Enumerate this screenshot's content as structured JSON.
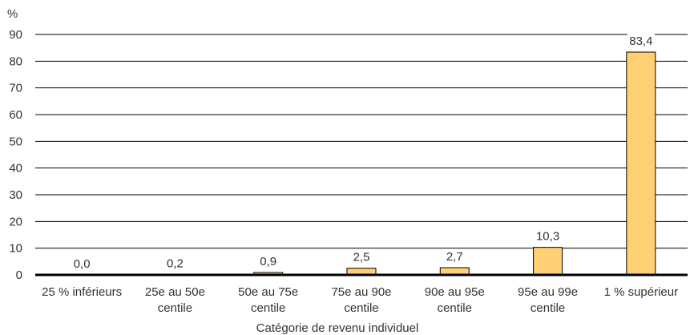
{
  "chart_data": {
    "type": "bar",
    "ylabel": "%",
    "xlabel": "Catégorie de revenu individuel",
    "ylim": [
      0,
      90
    ],
    "yticks": [
      0,
      10,
      20,
      30,
      40,
      50,
      60,
      70,
      80,
      90
    ],
    "grid": true,
    "categories": [
      [
        "25 % inférieurs"
      ],
      [
        "25e au 50e",
        "centile"
      ],
      [
        "50e au 75e",
        "centile"
      ],
      [
        "75e au 90e",
        "centile"
      ],
      [
        "90e au 95e",
        "centile"
      ],
      [
        "95e au 99e",
        "centile"
      ],
      [
        "1 % supérieur"
      ]
    ],
    "values": [
      0.0,
      0.2,
      0.9,
      2.5,
      2.7,
      10.3,
      83.4
    ],
    "value_labels": [
      "0,0",
      "0,2",
      "0,9",
      "2,5",
      "2,7",
      "10,3",
      "83,4"
    ],
    "bar_color": "#FFD073",
    "bar_stroke": "#000000"
  }
}
